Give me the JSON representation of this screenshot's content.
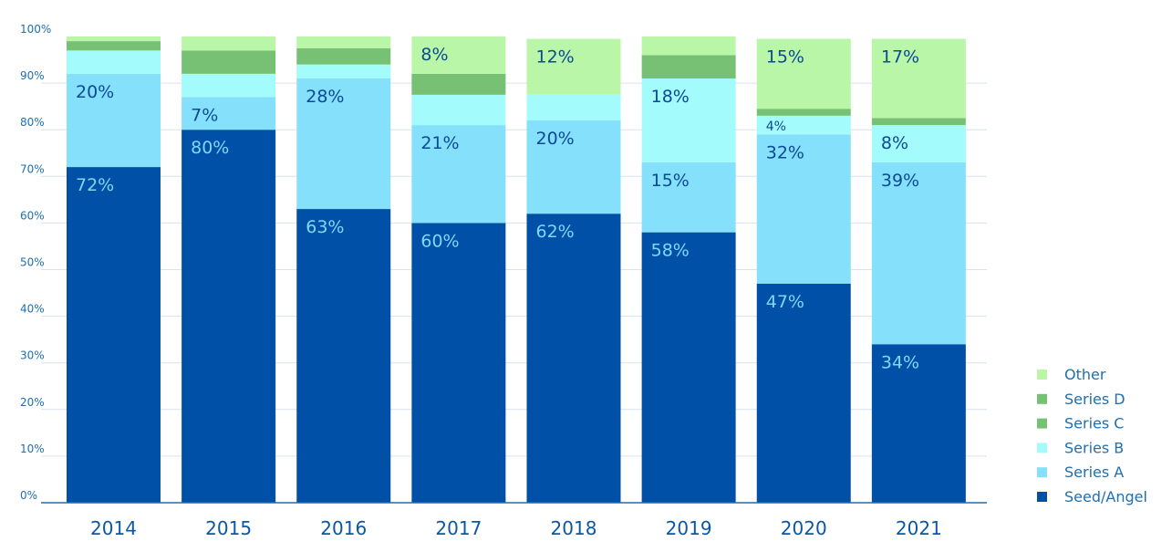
{
  "chart_data": {
    "type": "bar",
    "stacked": true,
    "title": "",
    "xlabel": "",
    "ylabel": "",
    "ylim": [
      0,
      100
    ],
    "y_ticks": [
      "0%",
      "10%",
      "20%",
      "30%",
      "40%",
      "50%",
      "60%",
      "70%",
      "80%",
      "90%",
      "100%"
    ],
    "categories": [
      "2014",
      "2015",
      "2016",
      "2017",
      "2018",
      "2019",
      "2020",
      "2021"
    ],
    "grid": true,
    "legend_position": "bottom-right",
    "series": [
      {
        "name": "Seed/Angel",
        "color": "#0050a8",
        "label_color": "#7fd8f5",
        "values": [
          72,
          80,
          63,
          60,
          62,
          58,
          47,
          34
        ],
        "labels": [
          "72%",
          "80%",
          "63%",
          "60%",
          "62%",
          "58%",
          "47%",
          "34%"
        ]
      },
      {
        "name": "Series A",
        "color": "#85e0fb",
        "label_color": "#0c4a96",
        "values": [
          20,
          7,
          28,
          21,
          20,
          15,
          32,
          39
        ],
        "labels": [
          "20%",
          "7%",
          "28%",
          "21%",
          "20%",
          "15%",
          "32%",
          "39%"
        ]
      },
      {
        "name": "Series B",
        "color": "#a3fbfc",
        "label_color": "#0c4a96",
        "values": [
          5,
          5,
          3,
          6.5,
          5.5,
          18,
          4,
          8
        ],
        "labels": [
          "",
          "",
          "",
          "",
          "",
          "18%",
          "4%",
          "8%"
        ]
      },
      {
        "name": "Series C",
        "color": "#76c173",
        "label_color": "#0c4a96",
        "values": [
          2,
          5,
          3.5,
          4.5,
          0,
          5,
          1.5,
          1.5
        ],
        "labels": [
          "",
          "",
          "",
          "",
          "",
          "",
          "",
          ""
        ]
      },
      {
        "name": "Series D",
        "color": "#76c173",
        "label_color": "#0c4a96",
        "values": [
          0,
          0,
          0,
          0,
          0,
          0,
          0,
          0
        ],
        "labels": [
          "",
          "",
          "",
          "",
          "",
          "",
          "",
          ""
        ]
      },
      {
        "name": "Other",
        "color": "#baf6a8",
        "label_color": "#0c4a96",
        "values": [
          1,
          3,
          2.5,
          8,
          12,
          4,
          15,
          17
        ],
        "labels": [
          "",
          "",
          "",
          "8%",
          "12%",
          "",
          "15%",
          "17%"
        ]
      }
    ]
  }
}
